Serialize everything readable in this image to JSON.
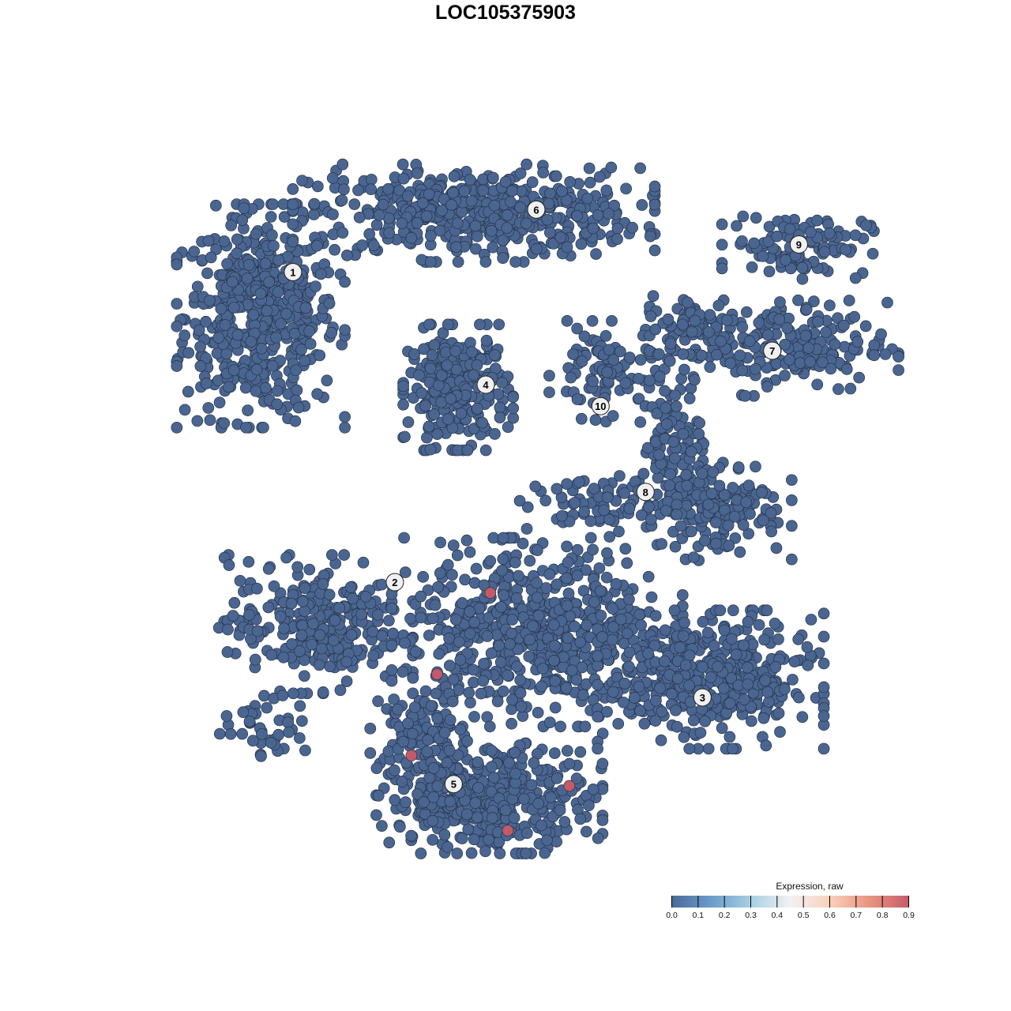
{
  "chart_data": {
    "type": "scatter",
    "title": "LOC105375903",
    "xlim": [
      -40,
      40
    ],
    "ylim": [
      -40,
      40
    ],
    "grid": false,
    "axes_visible": false,
    "point_color_default": "#4a6590",
    "point_color_high": "#c35a68",
    "clusters": [
      {
        "label": "1",
        "label_pos": [
          -25.3,
          25.9
        ],
        "center": [
          -28.8,
          21.0
        ],
        "spread": [
          5.2,
          7.1
        ],
        "n": 520
      },
      {
        "label": "6",
        "label_pos": [
          1.2,
          32.9
        ],
        "center": [
          -5.6,
          32.5
        ],
        "spread": [
          11.2,
          3.1
        ],
        "n": 520
      },
      {
        "label": "4",
        "label_pos": [
          -4.3,
          13.3
        ],
        "center": [
          -7.3,
          13.0
        ],
        "spread": [
          3.4,
          4.0
        ],
        "n": 260
      },
      {
        "label": "10",
        "label_pos": [
          8.2,
          10.9
        ],
        "center": [
          8.6,
          14.8
        ],
        "spread": [
          3.4,
          3.2
        ],
        "n": 90
      },
      {
        "label": "9",
        "label_pos": [
          29.8,
          29.0
        ],
        "center": [
          29.7,
          29.0
        ],
        "spread": [
          4.7,
          2.2
        ],
        "n": 110
      },
      {
        "label": "7",
        "label_pos": [
          26.9,
          17.1
        ],
        "center": [
          27.1,
          17.5
        ],
        "spread": [
          7.7,
          3.1
        ],
        "n": 220
      },
      {
        "label": "",
        "center": [
          18.5,
          20.1
        ],
        "spread": [
          3.0,
          2.0
        ],
        "n": 60
      },
      {
        "label": "8",
        "label_pos": [
          13.1,
          1.3
        ],
        "center": [
          21.1,
          -0.2
        ],
        "spread": [
          4.5,
          3.5
        ],
        "n": 160
      },
      {
        "label": "",
        "center": [
          15.9,
          6.8
        ],
        "spread": [
          2.0,
          4.0
        ],
        "n": 90
      },
      {
        "label": "",
        "center": [
          8.2,
          -0.2
        ],
        "spread": [
          5.0,
          2.0
        ],
        "n": 80
      },
      {
        "label": "2",
        "label_pos": [
          -14.2,
          -8.8
        ],
        "center": [
          -22.8,
          -13.5
        ],
        "spread": [
          6.0,
          4.4
        ],
        "n": 280
      },
      {
        "label": "",
        "center": [
          -28.0,
          -25.0
        ],
        "spread": [
          3.0,
          2.0
        ],
        "n": 40
      },
      {
        "label": "",
        "center": [
          1.3,
          -14.4
        ],
        "spread": [
          9.0,
          6.0
        ],
        "n": 620
      },
      {
        "label": "3",
        "label_pos": [
          19.3,
          -21.7
        ],
        "center": [
          20.2,
          -19.7
        ],
        "spread": [
          7.0,
          4.4
        ],
        "n": 430
      },
      {
        "label": "5",
        "label_pos": [
          -7.8,
          -31.4
        ],
        "center": [
          -3.9,
          -33.0
        ],
        "spread": [
          7.0,
          3.5
        ],
        "n": 420
      },
      {
        "label": "",
        "center": [
          -11.6,
          -25.9
        ],
        "spread": [
          3.0,
          3.0
        ],
        "n": 90
      }
    ],
    "high_expression_points": [
      {
        "x": -3.8,
        "y": -10.0,
        "value": 0.9
      },
      {
        "x": -9.6,
        "y": -19.1,
        "value": 0.9
      },
      {
        "x": -12.4,
        "y": -28.2,
        "value": 0.9
      },
      {
        "x": 4.8,
        "y": -31.6,
        "value": 0.9
      },
      {
        "x": -1.9,
        "y": -36.6,
        "value": 0.9
      }
    ],
    "legend": {
      "title": "Expression, raw",
      "placement": "bottom-right",
      "ticks": [
        "0.0",
        "0.1",
        "0.2",
        "0.3",
        "0.4",
        "0.5",
        "0.6",
        "0.7",
        "0.8",
        "0.9"
      ],
      "range": [
        0,
        0.9
      ],
      "colors": [
        "#4a6a96",
        "#6a9ccc",
        "#a7cfe2",
        "#f2f2f2",
        "#f9d0bc",
        "#e8957f",
        "#c75a6a"
      ]
    }
  }
}
